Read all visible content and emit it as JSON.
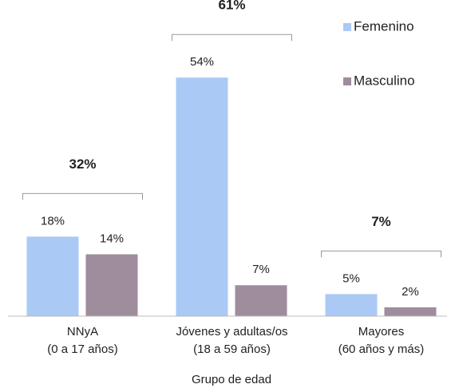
{
  "chart_data": {
    "type": "bar",
    "x_label": "Grupo de edad",
    "categories": [
      [
        "NNyA",
        "(0 a 17 años)"
      ],
      [
        "Jóvenes y adultas/os",
        "(18 a 59 años)"
      ],
      [
        "Mayores",
        "(60 años y más)"
      ]
    ],
    "series": [
      {
        "name": "Femenino",
        "color": "#abc9f5",
        "values": [
          18,
          54,
          5
        ],
        "value_labels": [
          "18%",
          "54%",
          "5%"
        ]
      },
      {
        "name": "Masculino",
        "color": "#9f8c9d",
        "values": [
          14,
          7,
          2
        ],
        "value_labels": [
          "14%",
          "7%",
          "2%"
        ]
      }
    ],
    "annotations": [
      "32%",
      "61%",
      "7%"
    ],
    "ylim": [
      0,
      60
    ],
    "legend": "top-right"
  }
}
